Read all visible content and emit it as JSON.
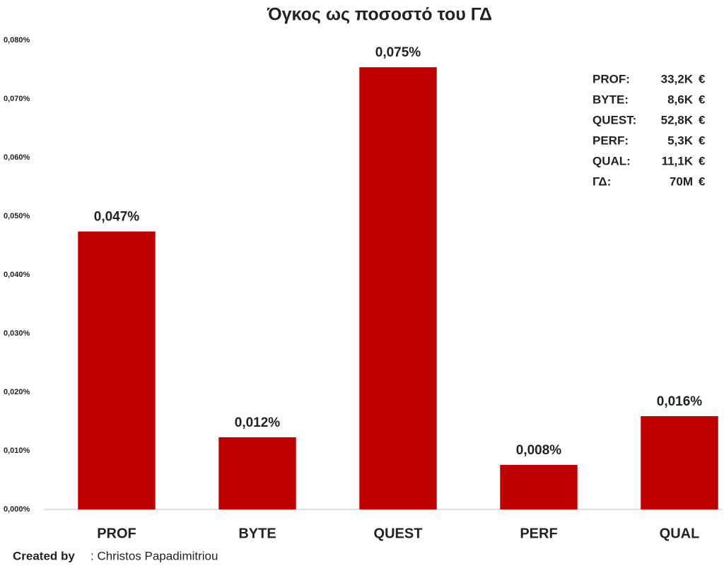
{
  "chart_data": {
    "type": "bar",
    "title": "Όγκος ως ποσοστό του ΓΔ",
    "categories": [
      "PROF",
      "BYTE",
      "QUEST",
      "PERF",
      "QUAL"
    ],
    "values": [
      0.0474,
      0.0123,
      0.0754,
      0.0076,
      0.0159
    ],
    "value_labels": [
      "0,047%",
      "0,012%",
      "0,075%",
      "0,008%",
      "0,016%"
    ],
    "color": "#c00000",
    "ylim": [
      0,
      0.08
    ],
    "yticks": [
      {
        "value": 0,
        "label": "0,000%"
      },
      {
        "value": 0.01,
        "label": "0,010%"
      },
      {
        "value": 0.02,
        "label": "0,020%"
      },
      {
        "value": 0.03,
        "label": "0,030%"
      },
      {
        "value": 0.04,
        "label": "0,040%"
      },
      {
        "value": 0.05,
        "label": "0,050%"
      },
      {
        "value": 0.06,
        "label": "0,060%"
      },
      {
        "value": 0.07,
        "label": "0,070%"
      },
      {
        "value": 0.08,
        "label": "0,080%"
      }
    ],
    "grid": false,
    "annotation_rows": [
      [
        "PROF:",
        "33,2K",
        "€"
      ],
      [
        "BYTE:",
        "8,6K",
        "€"
      ],
      [
        "QUEST:",
        "52,8K",
        "€"
      ],
      [
        "PERF:",
        "5,3K",
        "€"
      ],
      [
        "QUAL:",
        "11,1K",
        "€"
      ],
      [
        "ΓΔ:",
        "70M",
        "€"
      ]
    ],
    "credit_label": "Created by",
    "credit_name": ": Christos Papadimitriou"
  }
}
